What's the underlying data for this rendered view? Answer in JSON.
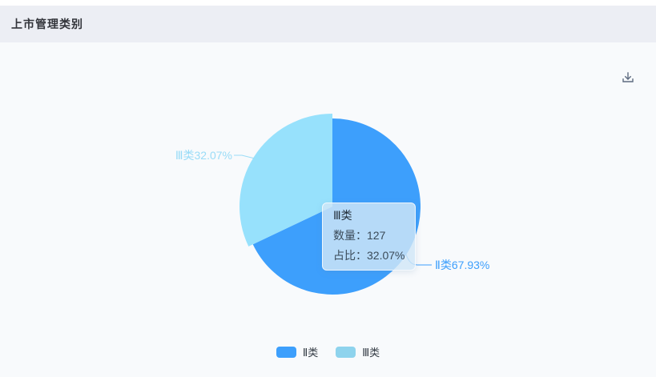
{
  "header": {
    "title": "上市管理类别"
  },
  "toolbar": {
    "download_icon": "tray-arrow-down"
  },
  "colors": {
    "top_strip_bg": "#FFFFFF",
    "header_bg": "#ECEEF4",
    "panel_bg": "#F8FAFC",
    "title_text": "#32343A",
    "icon": "#5E6B80",
    "tooltip_bg": "rgba(209,231,247,0.82)",
    "tooltip_text": "#3A4A58",
    "legend_text": "#333B44"
  },
  "chart_data": {
    "type": "pie",
    "title": "上市管理类别",
    "legend_position": "bottom",
    "start_angle_deg": 90,
    "direction": "clockwise",
    "slices": [
      {
        "name": "Ⅱ类",
        "value": 67.93,
        "percent_label": "Ⅱ类67.93%",
        "color": "#3D9FFC",
        "legend_color": "#3D9FFC",
        "label_color": "#3D9FFC",
        "hovered": false
      },
      {
        "name": "Ⅲ类",
        "value": 32.07,
        "count": 127,
        "percent_label": "Ⅲ类32.07%",
        "color": "#97E1FC",
        "legend_color": "#8ED3ED",
        "label_color": "#9ADCF7",
        "hovered": true
      }
    ]
  },
  "tooltip": {
    "title": "Ⅲ类",
    "rows": [
      {
        "label": "数量：",
        "value": "127"
      },
      {
        "label": "占比：",
        "value": "32.07%"
      }
    ]
  }
}
